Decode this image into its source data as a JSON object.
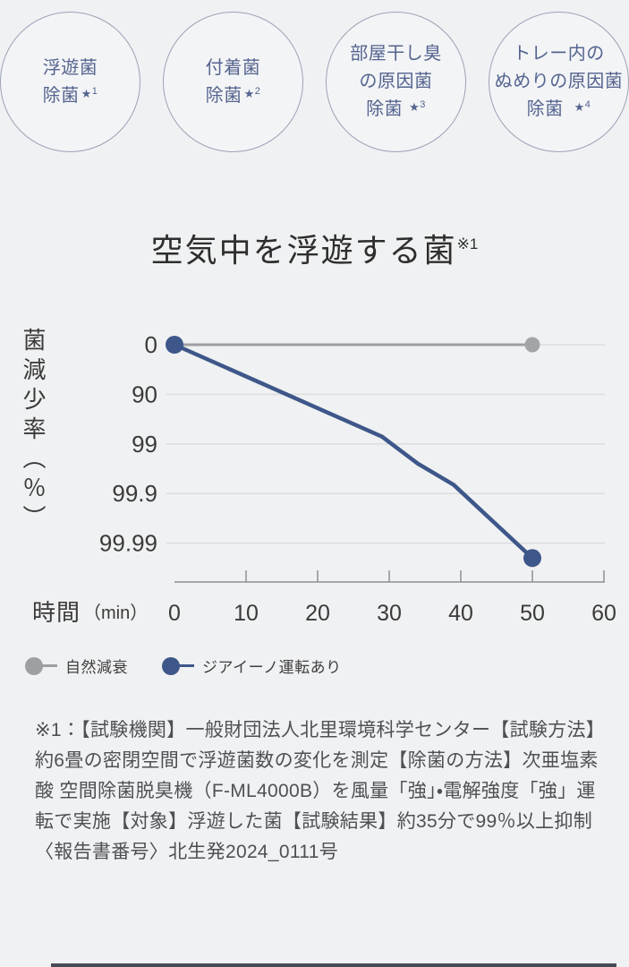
{
  "badges": [
    {
      "lines": [
        "浮遊菌",
        "除菌"
      ],
      "star_mark": "★",
      "star_num": "1"
    },
    {
      "lines": [
        "付着菌",
        "除菌"
      ],
      "star_mark": "★",
      "star_num": "2"
    },
    {
      "lines": [
        "部屋干し臭",
        "の原因菌",
        "除菌"
      ],
      "star_mark": "★",
      "star_num": "3"
    },
    {
      "lines": [
        "トレー内の",
        "ぬめりの原因菌",
        "除菌"
      ],
      "star_mark": "★",
      "star_num": "4"
    }
  ],
  "title": {
    "text": "空気中を浮遊する菌",
    "sup": "※1"
  },
  "chart_data": {
    "type": "line",
    "title": "空気中を浮遊する菌※1",
    "y_axis_label": "菌減少率（％）",
    "y_ticks": [
      "0",
      "90",
      "99",
      "99.9",
      "99.99"
    ],
    "y_scale": "log-reduction: each tick step is one decade of surviving bacteria (0, 90, 99, 99.9, 99.99 % reduction)",
    "x_label": "時間",
    "x_unit": "（min）",
    "x_ticks": [
      "0",
      "10",
      "20",
      "30",
      "40",
      "50",
      "60"
    ],
    "x_range_min": 0,
    "x_range_max": 60,
    "grid": "horizontal only",
    "legend_position": "bottom-left",
    "series": [
      {
        "name": "自然減衰",
        "color": "#9e9fa0",
        "dot_color": "#a3a4a5",
        "points": [
          {
            "min": 0,
            "pct": 0
          },
          {
            "min": 50,
            "pct": 0
          }
        ]
      },
      {
        "name": "ジアイーノ運転あり",
        "color": "#3e578a",
        "dot_color": "#3e578a",
        "points": [
          {
            "min": 0,
            "pct": 0
          },
          {
            "min": 29,
            "pct": 98.6
          },
          {
            "min": 34,
            "pct": 99.6
          },
          {
            "min": 39,
            "pct": 99.85
          },
          {
            "min": 50,
            "pct": 99.995
          }
        ]
      }
    ]
  },
  "legend": {
    "items": [
      {
        "label": "自然減衰",
        "color": "#9e9fa0"
      },
      {
        "label": "ジアイーノ運転あり",
        "color": "#3e578a"
      }
    ]
  },
  "footnote": "※1：【試験機関】一般財団法人北里環境科学センター【試験方法】約6畳の密閉空間で浮遊菌数の変化を測定【除菌の方法】次亜塩素酸 空間除菌脱臭機（F-ML4000B）を風量「強」・電解強度「強」運転で実施【対象】浮遊した菌【試験結果】約35分で99％以上抑制〈報告書番号〉北生発2024_0111号"
}
